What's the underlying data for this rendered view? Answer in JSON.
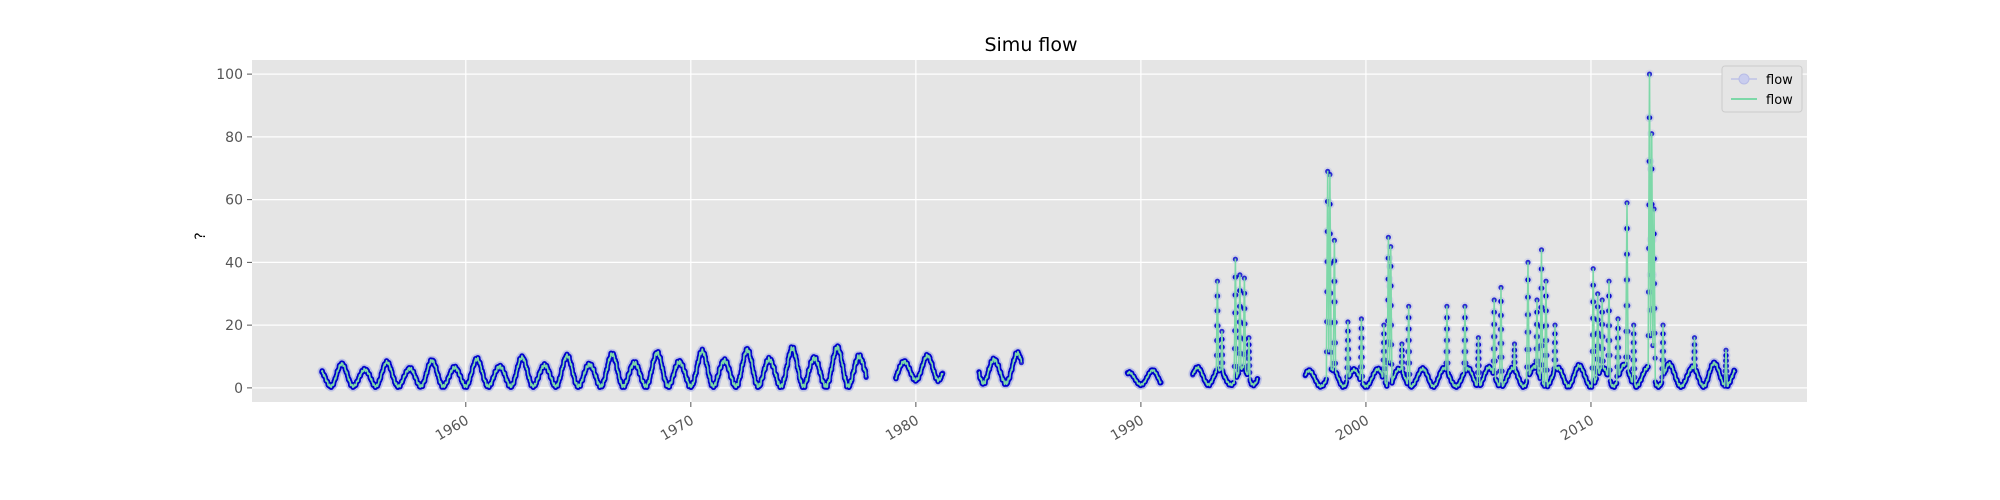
{
  "chart_data": {
    "type": "line",
    "title": "Simu flow",
    "xlabel": "",
    "ylabel": "?",
    "xlim": [
      1950.5,
      2019.6
    ],
    "ylim": [
      -4.5,
      104.5
    ],
    "x_ticks": [
      {
        "value": 1960,
        "label": "1960"
      },
      {
        "value": 1970,
        "label": "1970"
      },
      {
        "value": 1980,
        "label": "1980"
      },
      {
        "value": 1990,
        "label": "1990"
      },
      {
        "value": 2000,
        "label": "2000"
      },
      {
        "value": 2010,
        "label": "2010"
      }
    ],
    "y_ticks": [
      {
        "value": 0,
        "label": "0"
      },
      {
        "value": 20,
        "label": "20"
      },
      {
        "value": 40,
        "label": "40"
      },
      {
        "value": 60,
        "label": "60"
      },
      {
        "value": 80,
        "label": "80"
      },
      {
        "value": 100,
        "label": "100"
      }
    ],
    "grid": true,
    "legend": "top-right",
    "colors": {
      "axes_bg": "#e5e5e5",
      "grid": "#ffffff",
      "markers": "#0000cc",
      "markers_light": "#b8bce6",
      "line": "#7dd8a8",
      "tick_text": "#555555"
    },
    "series": [
      {
        "name": "flow",
        "style": "markers"
      },
      {
        "name": "flow",
        "style": "line"
      }
    ],
    "segments": [
      {
        "start": 1953.6,
        "end": 1977.8,
        "base": 0.5,
        "amp_start": 7,
        "amp_end": 13
      },
      {
        "start": 1979.1,
        "end": 1981.2,
        "base": 2.5,
        "amp_start": 8,
        "amp_end": 8
      },
      {
        "start": 1982.8,
        "end": 1984.7,
        "base": 1.5,
        "amp_start": 10,
        "amp_end": 10
      },
      {
        "start": 1989.4,
        "end": 1990.9,
        "base": 1.0,
        "amp_start": 5,
        "amp_end": 5
      },
      {
        "start": 1992.3,
        "end": 1995.2,
        "base": 1.0,
        "amp_start": 6,
        "amp_end": 6
      },
      {
        "start": 1997.3,
        "end": 2016.4,
        "base": 0.5,
        "amp_start": 6,
        "amp_end": 8
      }
    ],
    "peaks": [
      {
        "x": 1993.4,
        "y": 34
      },
      {
        "x": 1993.6,
        "y": 18
      },
      {
        "x": 1994.2,
        "y": 41
      },
      {
        "x": 1994.4,
        "y": 36
      },
      {
        "x": 1994.6,
        "y": 35
      },
      {
        "x": 1994.8,
        "y": 16
      },
      {
        "x": 1998.3,
        "y": 69
      },
      {
        "x": 1998.4,
        "y": 68
      },
      {
        "x": 1998.6,
        "y": 47
      },
      {
        "x": 1999.2,
        "y": 21
      },
      {
        "x": 1999.8,
        "y": 22
      },
      {
        "x": 2000.8,
        "y": 20
      },
      {
        "x": 2001.0,
        "y": 48
      },
      {
        "x": 2001.1,
        "y": 45
      },
      {
        "x": 2001.6,
        "y": 14
      },
      {
        "x": 2001.9,
        "y": 26
      },
      {
        "x": 2003.6,
        "y": 26
      },
      {
        "x": 2004.4,
        "y": 26
      },
      {
        "x": 2005.0,
        "y": 16
      },
      {
        "x": 2005.7,
        "y": 28
      },
      {
        "x": 2006.0,
        "y": 32
      },
      {
        "x": 2006.6,
        "y": 14
      },
      {
        "x": 2007.2,
        "y": 40
      },
      {
        "x": 2007.6,
        "y": 28
      },
      {
        "x": 2007.8,
        "y": 44
      },
      {
        "x": 2008.0,
        "y": 34
      },
      {
        "x": 2008.4,
        "y": 20
      },
      {
        "x": 2010.1,
        "y": 38
      },
      {
        "x": 2010.3,
        "y": 30
      },
      {
        "x": 2010.5,
        "y": 28
      },
      {
        "x": 2010.8,
        "y": 34
      },
      {
        "x": 2011.2,
        "y": 22
      },
      {
        "x": 2011.6,
        "y": 59
      },
      {
        "x": 2011.9,
        "y": 20
      },
      {
        "x": 2012.6,
        "y": 100
      },
      {
        "x": 2012.7,
        "y": 81
      },
      {
        "x": 2012.8,
        "y": 57
      },
      {
        "x": 2013.2,
        "y": 20
      },
      {
        "x": 2014.6,
        "y": 16
      },
      {
        "x": 2016.0,
        "y": 12
      }
    ]
  }
}
